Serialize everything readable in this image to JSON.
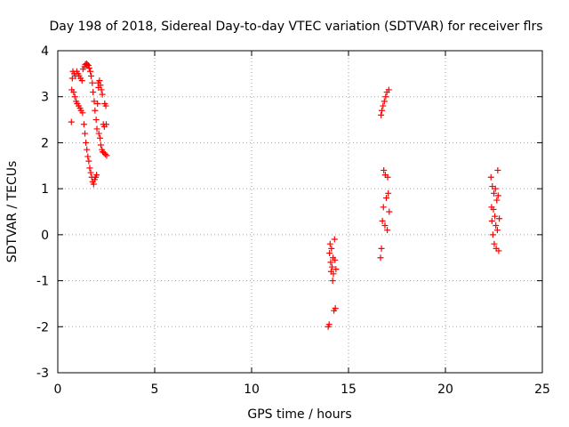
{
  "chart_data": {
    "type": "scatter",
    "title": "Day 198 of 2018, Sidereal Day-to-day VTEC variation (SDTVAR) for receiver flrs",
    "xlabel": "GPS time / hours",
    "ylabel": "SDTVAR / TECUs",
    "xlim": [
      0,
      25
    ],
    "ylim": [
      -3,
      4
    ],
    "xticks": [
      0,
      5,
      10,
      15,
      20,
      25
    ],
    "yticks": [
      -3,
      -2,
      -1,
      0,
      1,
      2,
      3,
      4
    ],
    "grid": true,
    "marker": "+",
    "series": [
      {
        "color": "#ff0000",
        "points": [
          [
            0.7,
            2.45
          ],
          [
            0.72,
            3.15
          ],
          [
            0.75,
            3.4
          ],
          [
            0.78,
            3.55
          ],
          [
            0.82,
            3.1
          ],
          [
            0.85,
            3.5
          ],
          [
            0.88,
            3.0
          ],
          [
            0.92,
            3.45
          ],
          [
            0.95,
            2.9
          ],
          [
            0.98,
            3.55
          ],
          [
            1.0,
            2.85
          ],
          [
            1.05,
            3.5
          ],
          [
            1.08,
            2.8
          ],
          [
            1.1,
            3.45
          ],
          [
            1.15,
            2.75
          ],
          [
            1.18,
            3.4
          ],
          [
            1.2,
            2.7
          ],
          [
            1.25,
            3.35
          ],
          [
            1.28,
            2.65
          ],
          [
            1.3,
            3.6
          ],
          [
            1.35,
            2.4
          ],
          [
            1.38,
            3.65
          ],
          [
            1.4,
            2.2
          ],
          [
            1.42,
            3.7
          ],
          [
            1.45,
            2.0
          ],
          [
            1.48,
            3.72
          ],
          [
            1.5,
            1.85
          ],
          [
            1.52,
            3.7
          ],
          [
            1.55,
            1.7
          ],
          [
            1.58,
            3.68
          ],
          [
            1.6,
            1.6
          ],
          [
            1.62,
            3.62
          ],
          [
            1.65,
            1.45
          ],
          [
            1.68,
            3.55
          ],
          [
            1.7,
            1.35
          ],
          [
            1.72,
            3.45
          ],
          [
            1.75,
            1.25
          ],
          [
            1.78,
            3.3
          ],
          [
            1.8,
            1.15
          ],
          [
            1.82,
            3.1
          ],
          [
            1.85,
            1.1
          ],
          [
            1.88,
            2.9
          ],
          [
            1.9,
            1.2
          ],
          [
            1.92,
            2.7
          ],
          [
            1.95,
            1.25
          ],
          [
            1.98,
            2.5
          ],
          [
            2.0,
            1.3
          ],
          [
            2.02,
            2.3
          ],
          [
            2.05,
            2.85
          ],
          [
            2.08,
            3.3
          ],
          [
            2.1,
            3.2
          ],
          [
            2.12,
            2.2
          ],
          [
            2.15,
            3.35
          ],
          [
            2.18,
            2.1
          ],
          [
            2.2,
            3.25
          ],
          [
            2.22,
            1.95
          ],
          [
            2.25,
            3.15
          ],
          [
            2.28,
            1.85
          ],
          [
            2.3,
            3.05
          ],
          [
            2.32,
            1.8
          ],
          [
            2.35,
            2.4
          ],
          [
            2.38,
            1.78
          ],
          [
            2.4,
            2.35
          ],
          [
            2.42,
            2.85
          ],
          [
            2.45,
            1.75
          ],
          [
            2.48,
            2.8
          ],
          [
            2.5,
            2.4
          ],
          [
            2.52,
            1.72
          ],
          [
            13.95,
            -2.0
          ],
          [
            14.0,
            -1.95
          ],
          [
            14.02,
            -0.4
          ],
          [
            14.05,
            -0.2
          ],
          [
            14.08,
            -0.6
          ],
          [
            14.1,
            -0.8
          ],
          [
            14.12,
            -0.3
          ],
          [
            14.15,
            -0.7
          ],
          [
            14.18,
            -1.0
          ],
          [
            14.2,
            -0.5
          ],
          [
            14.22,
            -0.85
          ],
          [
            14.25,
            -1.65
          ],
          [
            14.28,
            -0.1
          ],
          [
            14.3,
            -0.55
          ],
          [
            14.32,
            -1.6
          ],
          [
            14.35,
            -0.75
          ],
          [
            16.65,
            -0.5
          ],
          [
            16.68,
            2.6
          ],
          [
            16.7,
            -0.3
          ],
          [
            16.72,
            2.7
          ],
          [
            16.75,
            0.3
          ],
          [
            16.78,
            2.8
          ],
          [
            16.8,
            0.6
          ],
          [
            16.82,
            1.4
          ],
          [
            16.85,
            2.9
          ],
          [
            16.88,
            0.2
          ],
          [
            16.9,
            1.3
          ],
          [
            16.92,
            3.0
          ],
          [
            16.95,
            0.8
          ],
          [
            16.98,
            3.1
          ],
          [
            17.0,
            0.1
          ],
          [
            17.02,
            1.25
          ],
          [
            17.05,
            0.9
          ],
          [
            17.08,
            3.15
          ],
          [
            17.1,
            0.5
          ],
          [
            22.35,
            1.25
          ],
          [
            22.38,
            0.6
          ],
          [
            22.4,
            0.3
          ],
          [
            22.42,
            1.05
          ],
          [
            22.45,
            0.0
          ],
          [
            22.48,
            0.55
          ],
          [
            22.5,
            0.9
          ],
          [
            22.52,
            -0.2
          ],
          [
            22.55,
            0.4
          ],
          [
            22.58,
            1.0
          ],
          [
            22.6,
            0.2
          ],
          [
            22.62,
            -0.3
          ],
          [
            22.65,
            0.75
          ],
          [
            22.68,
            0.1
          ],
          [
            22.7,
            1.4
          ],
          [
            22.72,
            0.85
          ],
          [
            22.75,
            -0.35
          ],
          [
            22.78,
            0.35
          ]
        ]
      }
    ]
  }
}
